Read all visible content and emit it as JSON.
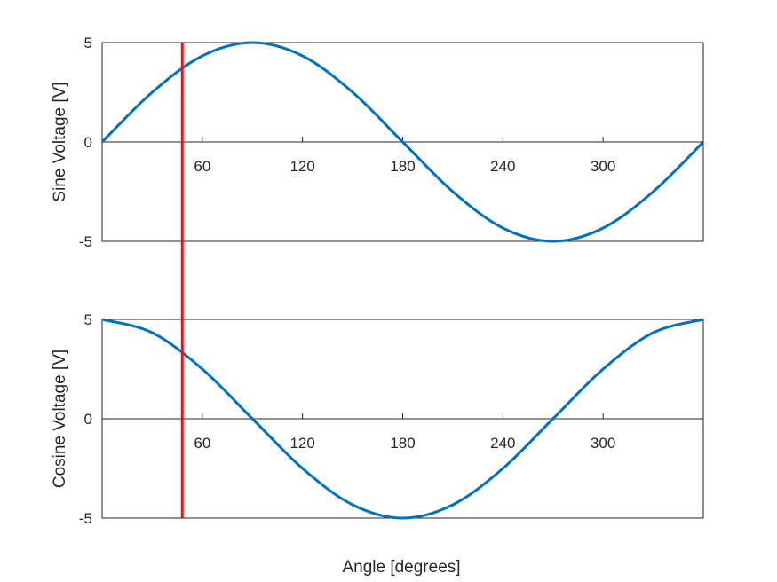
{
  "colors": {
    "series": "#0072BD",
    "marker_line": "#E8141B",
    "axis": "#262626",
    "background": "#FFFFFF"
  },
  "marker": {
    "x": 48
  },
  "chart_data": [
    {
      "type": "line",
      "title": "",
      "xlabel": "",
      "ylabel": "Sine Voltage [V]",
      "xlim": [
        0,
        360
      ],
      "ylim": [
        -5,
        5
      ],
      "xticks": [
        "60",
        "120",
        "180",
        "240",
        "300"
      ],
      "yticks": [
        "5",
        "0",
        "-5"
      ],
      "grid": false,
      "series": [
        {
          "x": [
            0,
            30,
            60,
            90,
            120,
            150,
            180,
            210,
            240,
            270,
            300,
            330,
            360
          ],
          "values": [
            0,
            2.5,
            4.33,
            5,
            4.33,
            2.5,
            0,
            -2.5,
            -4.33,
            -5,
            -4.33,
            -2.5,
            0
          ]
        }
      ]
    },
    {
      "type": "line",
      "title": "",
      "xlabel": "Angle [degrees]",
      "ylabel": "Cosine Voltage [V]",
      "xlim": [
        0,
        360
      ],
      "ylim": [
        -5,
        5
      ],
      "xticks": [
        "60",
        "120",
        "180",
        "240",
        "300"
      ],
      "yticks": [
        "5",
        "0",
        "-5"
      ],
      "grid": false,
      "series": [
        {
          "x": [
            0,
            30,
            60,
            90,
            120,
            150,
            180,
            210,
            240,
            270,
            300,
            330,
            360
          ],
          "values": [
            5,
            4.33,
            2.5,
            0,
            -2.5,
            -4.33,
            -5,
            -4.33,
            -2.5,
            0,
            2.5,
            4.33,
            5
          ]
        }
      ]
    }
  ]
}
